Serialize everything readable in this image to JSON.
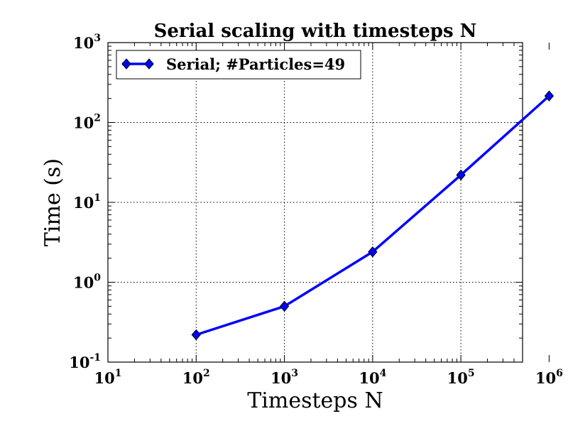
{
  "chart_data": {
    "type": "line",
    "title": "Serial scaling with timesteps N",
    "xlabel": "Timesteps N",
    "ylabel": "Time (s)",
    "xscale": "log",
    "yscale": "log",
    "xlim": [
      10,
      500000
    ],
    "ylim": [
      0.1,
      1000
    ],
    "grid": true,
    "legend_position": "top-left",
    "x_ticks": [
      {
        "base": "10",
        "exp": "1",
        "value": 10
      },
      {
        "base": "10",
        "exp": "2",
        "value": 100
      },
      {
        "base": "10",
        "exp": "3",
        "value": 1000
      },
      {
        "base": "10",
        "exp": "4",
        "value": 10000
      },
      {
        "base": "10",
        "exp": "5",
        "value": 100000
      },
      {
        "base": "10",
        "exp": "6",
        "value": 1000000
      }
    ],
    "y_ticks": [
      {
        "base": "10",
        "exp": "-1",
        "value": 0.1
      },
      {
        "base": "10",
        "exp": "0",
        "value": 1
      },
      {
        "base": "10",
        "exp": "1",
        "value": 10
      },
      {
        "base": "10",
        "exp": "2",
        "value": 100
      },
      {
        "base": "10",
        "exp": "3",
        "value": 1000
      }
    ],
    "series": [
      {
        "name": "Serial; #Particles=49",
        "color": "#0000ff",
        "marker": "diamond",
        "x": [
          100,
          1000,
          10000,
          100000,
          1000000
        ],
        "y": [
          0.22,
          0.5,
          2.4,
          22,
          215
        ]
      }
    ]
  }
}
